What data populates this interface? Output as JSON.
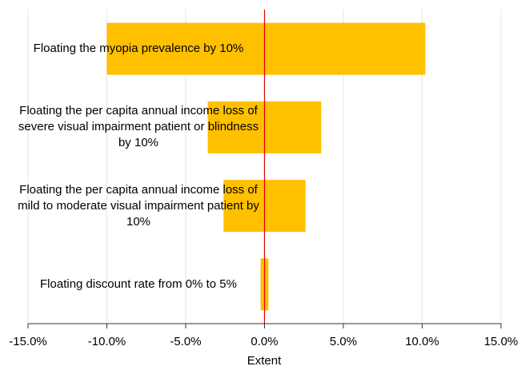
{
  "chart_data": {
    "type": "tornado",
    "categories": [
      "Floating the myopia prevalence by 10%",
      "Floating the per capita annual income loss of severe visual impairment patient or blindness by 10%",
      "Floating the per capita annual income loss of mild to moderate visual impairment patient by 10%",
      "Floating discount rate from 0% to 5%"
    ],
    "series": [
      {
        "color": "#ffc000",
        "values": [
          -10.0,
          -3.6,
          -2.6,
          -0.25
        ]
      },
      {
        "color": "#ffc000",
        "values": [
          10.2,
          3.6,
          2.6,
          0.25
        ]
      }
    ],
    "x_label": "Extent",
    "xlim": [
      -15,
      15
    ],
    "xticks": [
      {
        "value": -15,
        "label": "-15.0%"
      },
      {
        "value": -10,
        "label": "-10.0%"
      },
      {
        "value": -5,
        "label": "-5.0%"
      },
      {
        "value": 0,
        "label": "0.0%"
      },
      {
        "value": 5,
        "label": "5.0%"
      },
      {
        "value": 10,
        "label": "10.0%"
      },
      {
        "value": 15,
        "label": "15.0%"
      }
    ],
    "grid": true,
    "zero_line_color": "#e00000"
  }
}
